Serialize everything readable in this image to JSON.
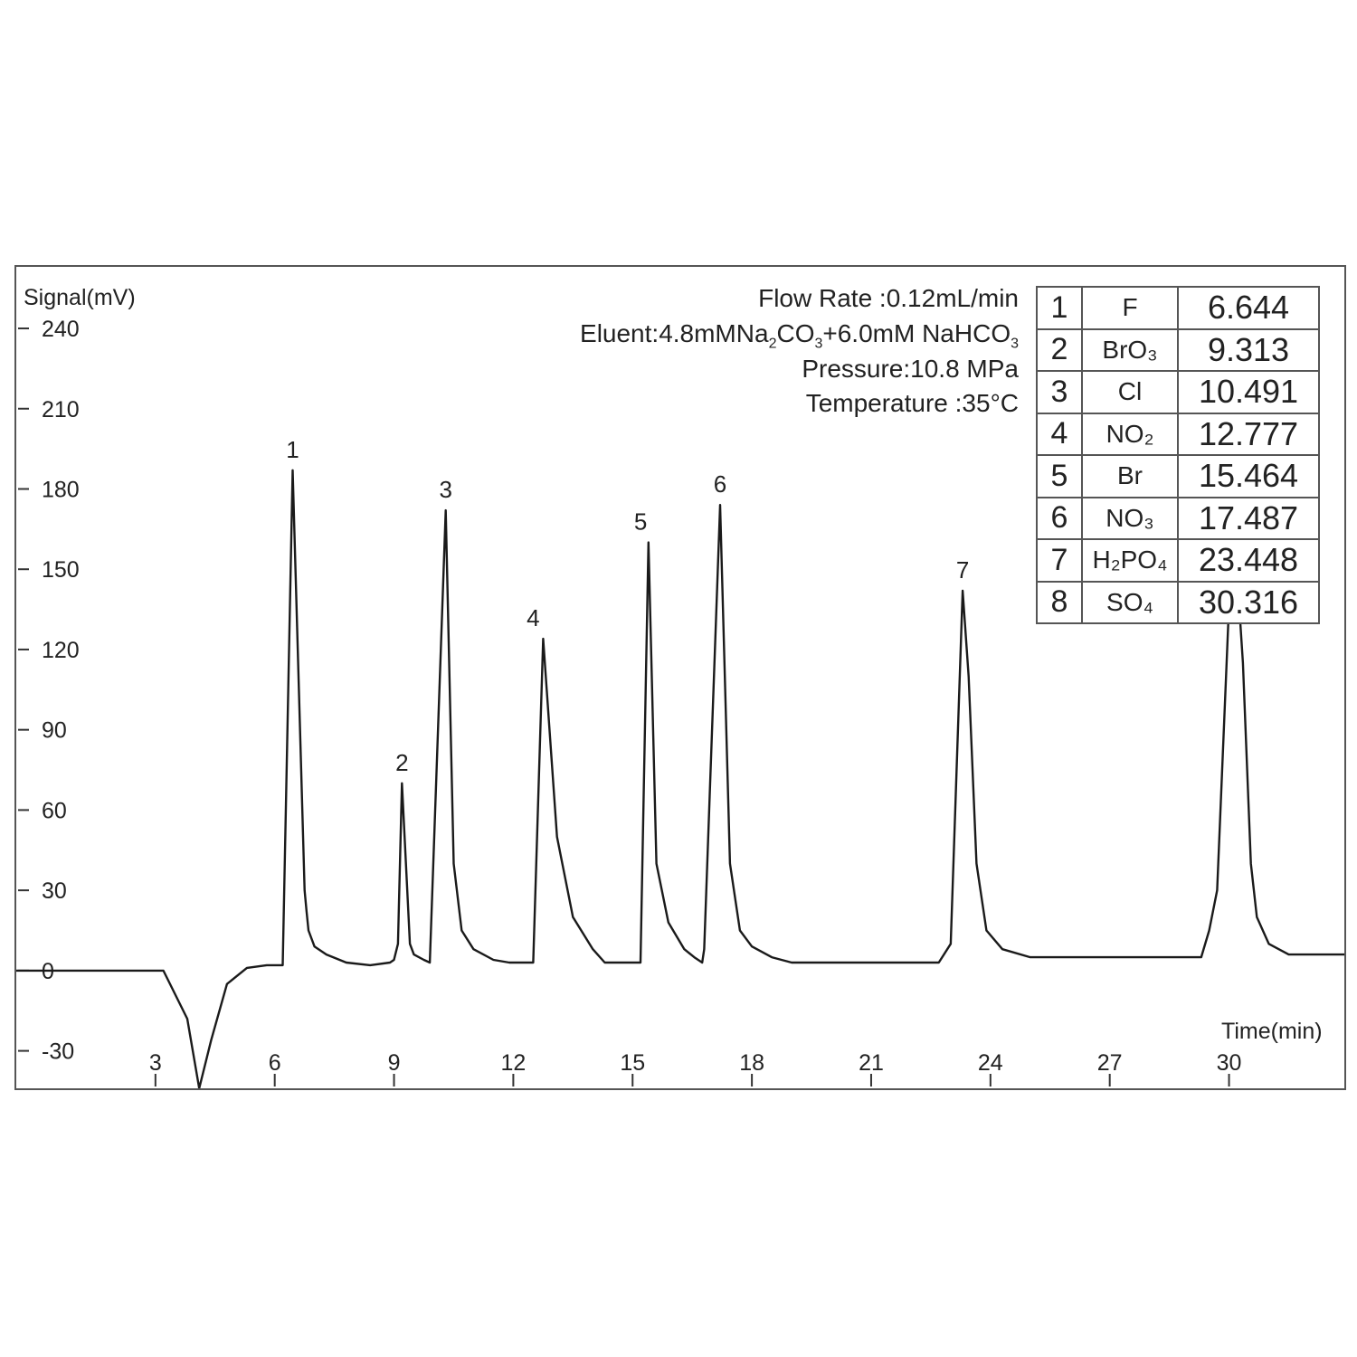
{
  "chart_data": {
    "type": "line",
    "xlabel": "Time(min)",
    "ylabel": "Signal(mV)",
    "xlim": [
      -0.5,
      32.9
    ],
    "ylim": [
      -44,
      263
    ],
    "x_ticks": [
      3,
      6,
      9,
      12,
      15,
      18,
      21,
      24,
      27,
      30
    ],
    "y_ticks": [
      240,
      210,
      180,
      150,
      120,
      90,
      60,
      30,
      0,
      -30
    ],
    "x_tick_labels": [
      "3",
      "6",
      "9",
      "12",
      "15",
      "18",
      "21",
      "24",
      "27",
      "30"
    ],
    "y_tick_labels": [
      "240",
      "210",
      "180",
      "150",
      "120",
      "90",
      "60",
      "30",
      "0",
      "-30"
    ],
    "grid": false,
    "series": [
      {
        "x": [
          -0.5,
          3.2,
          3.8,
          4.1,
          4.4,
          4.8,
          5.3,
          5.8,
          5.9,
          6.2,
          6.45,
          6.75,
          6.8,
          6.85,
          7.0,
          7.3,
          7.8,
          8.4,
          8.9,
          9.0,
          9.1,
          9.2,
          9.4,
          9.5,
          9.75,
          9.9,
          10.3,
          10.5,
          10.7,
          11.0,
          11.5,
          11.9,
          12.2,
          12.5,
          12.75,
          13.1,
          13.5,
          14.0,
          14.3,
          14.5,
          15.2,
          15.4,
          15.6,
          15.9,
          16.3,
          16.55,
          16.75,
          16.8,
          17.2,
          17.45,
          17.7,
          18.0,
          18.5,
          19.0,
          20.0,
          22.5,
          22.7,
          23.0,
          23.3,
          23.45,
          23.65,
          23.9,
          24.3,
          25.0,
          26.0,
          29.0,
          29.3,
          29.5,
          29.7,
          30.1,
          30.35,
          30.55,
          30.7,
          31.0,
          31.5,
          32.9
        ],
        "y": [
          0,
          0,
          -18,
          -44,
          -26,
          -5,
          1,
          2,
          2,
          2,
          187,
          30,
          22,
          15,
          9,
          6,
          3,
          2,
          3,
          4,
          10,
          70,
          10,
          6,
          4,
          3,
          172,
          40,
          15,
          8,
          4,
          3,
          3,
          3,
          124,
          50,
          20,
          8,
          3,
          3,
          3,
          160,
          40,
          18,
          8,
          5,
          3,
          8,
          174,
          40,
          15,
          9,
          5,
          3,
          3,
          3,
          3,
          10,
          142,
          110,
          40,
          15,
          8,
          5,
          5,
          5,
          5,
          15,
          30,
          172,
          115,
          40,
          20,
          10,
          6,
          6
        ]
      }
    ],
    "peak_labels": [
      {
        "text": "1",
        "x": 6.45,
        "y": 187
      },
      {
        "text": "2",
        "x": 9.2,
        "y": 70
      },
      {
        "text": "3",
        "x": 10.3,
        "y": 172
      },
      {
        "text": "4",
        "x": 12.5,
        "y": 124
      },
      {
        "text": "5",
        "x": 15.2,
        "y": 160
      },
      {
        "text": "6",
        "x": 17.2,
        "y": 174
      },
      {
        "text": "7",
        "x": 23.3,
        "y": 142
      }
    ]
  },
  "conditions": {
    "flow_rate": "Flow Rate :0.12mL/min",
    "eluent_prefix": "Eluent:4.8mMNa",
    "eluent_sub1": "2",
    "eluent_mid": "CO",
    "eluent_sub2": "3",
    "eluent_mid2": "+6.0mM NaHCO",
    "eluent_sub3": "3",
    "pressure": "Pressure:10.8 MPa",
    "temperature": "Temperature :35°C"
  },
  "peak_table": [
    {
      "num": "1",
      "ion": "F",
      "rt": "6.644"
    },
    {
      "num": "2",
      "ion": "BrO₃",
      "rt": "9.313"
    },
    {
      "num": "3",
      "ion": "Cl",
      "rt": "10.491"
    },
    {
      "num": "4",
      "ion": "NO₂",
      "rt": "12.777"
    },
    {
      "num": "5",
      "ion": "Br",
      "rt": "15.464"
    },
    {
      "num": "6",
      "ion": "NO₃",
      "rt": "17.487"
    },
    {
      "num": "7",
      "ion": "H₂PO₄",
      "rt": "23.448"
    },
    {
      "num": "8",
      "ion": "SO₄",
      "rt": "30.316"
    }
  ]
}
